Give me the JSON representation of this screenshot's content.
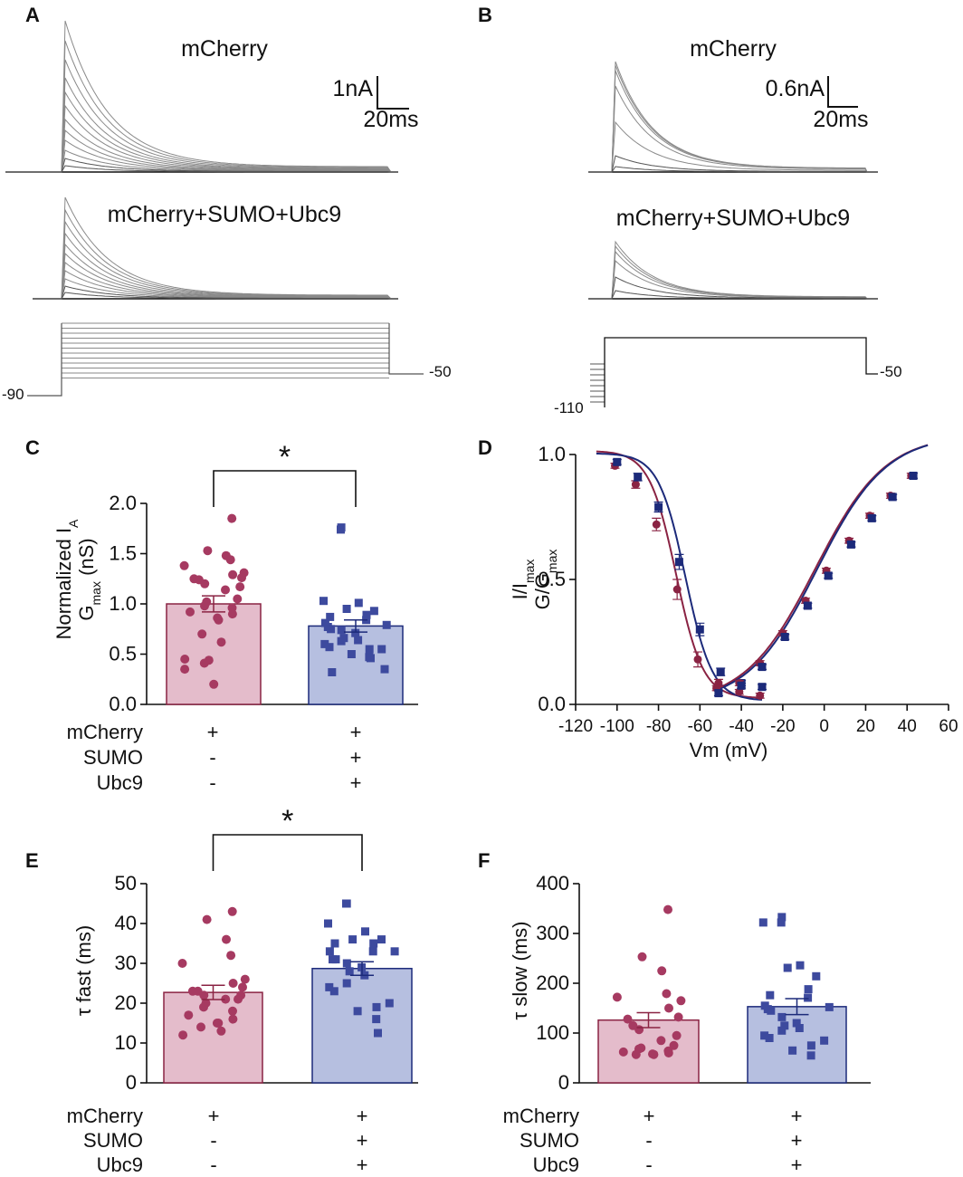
{
  "colors": {
    "control_fill": "#e4bccb",
    "control_edge": "#8a2343",
    "control_dot": "#a63a61",
    "sumo_fill": "#b6bfe0",
    "sumo_edge": "#1c2a7a",
    "sumo_dot": "#3d4a9e",
    "trace": "#7a7a7a"
  },
  "panel_letters": [
    "A",
    "B",
    "C",
    "D",
    "E",
    "F"
  ],
  "panel_A": {
    "top_title": "mCherry",
    "bottom_title": "mCherry+SUMO+Ubc9",
    "scale_current": "1nA",
    "scale_time": "20ms",
    "hold_label": "-90",
    "end_label": "-50"
  },
  "panel_B": {
    "top_title": "mCherry",
    "bottom_title": "mCherry+SUMO+Ubc9",
    "scale_current": "0.6nA",
    "scale_time": "20ms",
    "hold_label": "-110",
    "end_label": "-50"
  },
  "conditions_table": {
    "rows": [
      {
        "label": "mCherry",
        "control": "+",
        "sumo": "+"
      },
      {
        "label": "SUMO",
        "control": "-",
        "sumo": "+"
      },
      {
        "label": "Ubc9",
        "control": "-",
        "sumo": "+"
      }
    ]
  },
  "significance": "*",
  "chart_data": [
    {
      "id": "C",
      "type": "bar",
      "ylabel_line1": "Normalized I",
      "ylabel_sub1": "A",
      "ylabel_line2_pre": "G",
      "ylabel_sub2": "max",
      "ylabel_line2_post": " (nS)",
      "ylim": [
        0,
        2.0
      ],
      "yticks": [
        "0.0",
        "0.5",
        "1.0",
        "1.5",
        "2.0"
      ],
      "ytick_values": [
        0,
        0.5,
        1.0,
        1.5,
        2.0
      ],
      "bars": [
        {
          "name": "control",
          "mean": 1.0,
          "sem": 0.08
        },
        {
          "name": "sumo",
          "mean": 0.78,
          "sem": 0.06
        }
      ],
      "points": {
        "control": [
          1.85,
          1.53,
          1.48,
          1.44,
          1.38,
          1.31,
          1.29,
          1.26,
          1.25,
          1.24,
          1.2,
          1.17,
          1.14,
          1.05,
          1.02,
          0.98,
          0.96,
          0.92,
          0.9,
          0.86,
          0.84,
          0.7,
          0.62,
          0.45,
          0.44,
          0.41,
          0.35,
          0.2
        ],
        "sumo": [
          1.76,
          1.74,
          1.03,
          1.01,
          0.95,
          0.93,
          0.89,
          0.87,
          0.84,
          0.81,
          0.79,
          0.77,
          0.75,
          0.74,
          0.71,
          0.66,
          0.64,
          0.63,
          0.6,
          0.57,
          0.55,
          0.55,
          0.5,
          0.47,
          0.46,
          0.35,
          0.32
        ]
      }
    },
    {
      "id": "D",
      "type": "line",
      "xlabel": "Vm (mV)",
      "ylabel_l1_pre": "I/I",
      "ylabel_l1_sub": "max",
      "ylabel_l2_pre": "G/G",
      "ylabel_l2_sub": "max",
      "xlim": [
        -120,
        60
      ],
      "ylim": [
        0,
        1.0
      ],
      "xticks": [
        "-120",
        "-100",
        "-80",
        "-60",
        "-40",
        "-20",
        "0",
        "20",
        "40",
        "60"
      ],
      "xtick_values": [
        -120,
        -100,
        -80,
        -60,
        -40,
        -20,
        0,
        20,
        40,
        60
      ],
      "yticks": [
        "0.0",
        "0.5",
        "1.0"
      ],
      "ytick_values": [
        0,
        0.5,
        1.0
      ],
      "series": [
        {
          "name": "inactivation control",
          "marker": "circle",
          "x": [
            -101,
            -91,
            -81,
            -71,
            -61,
            -51,
            -41,
            -31
          ],
          "y": [
            0.955,
            0.88,
            0.72,
            0.46,
            0.18,
            0.085,
            0.05,
            0.035
          ],
          "err": [
            0.01,
            0.015,
            0.025,
            0.04,
            0.03,
            0.015,
            0.01,
            0.01
          ]
        },
        {
          "name": "inactivation sumo",
          "marker": "square",
          "x": [
            -100,
            -90,
            -80,
            -70,
            -60,
            -50,
            -40,
            -30
          ],
          "y": [
            0.97,
            0.91,
            0.79,
            0.57,
            0.3,
            0.13,
            0.085,
            0.07
          ],
          "err": [
            0.01,
            0.015,
            0.02,
            0.03,
            0.025,
            0.015,
            0.01,
            0.01
          ]
        },
        {
          "name": "activation control",
          "marker": "circle",
          "x": [
            -52,
            -41,
            -31,
            -20,
            -9,
            1,
            12,
            22,
            32,
            42
          ],
          "y": [
            0.065,
            0.085,
            0.165,
            0.285,
            0.415,
            0.535,
            0.655,
            0.755,
            0.835,
            0.915
          ],
          "err": [
            0.01,
            0.01,
            0.01,
            0.01,
            0.01,
            0.01,
            0.01,
            0.01,
            0.01,
            0.01
          ]
        },
        {
          "name": "activation sumo",
          "marker": "square",
          "x": [
            -51,
            -40,
            -30,
            -19,
            -8,
            2,
            13,
            23,
            33,
            43
          ],
          "y": [
            0.045,
            0.075,
            0.15,
            0.27,
            0.395,
            0.515,
            0.64,
            0.745,
            0.83,
            0.915
          ],
          "err": [
            0.01,
            0.01,
            0.01,
            0.01,
            0.01,
            0.01,
            0.01,
            0.01,
            0.01,
            0.01
          ]
        }
      ]
    },
    {
      "id": "E",
      "type": "bar",
      "ylabel": "τ fast (ms)",
      "ylim": [
        0,
        50
      ],
      "yticks": [
        "0",
        "10",
        "20",
        "30",
        "40",
        "50"
      ],
      "ytick_values": [
        0,
        10,
        20,
        30,
        40,
        50
      ],
      "bars": [
        {
          "name": "control",
          "mean": 22.7,
          "sem": 1.8
        },
        {
          "name": "sumo",
          "mean": 28.7,
          "sem": 1.7
        }
      ],
      "points": {
        "control": [
          43,
          41,
          36,
          32,
          30,
          26,
          25,
          24,
          23,
          23,
          22,
          22,
          21,
          21,
          20,
          19,
          18,
          17,
          16,
          15,
          15,
          14,
          13,
          12
        ],
        "sumo": [
          45,
          45,
          40,
          38,
          36,
          36,
          35,
          35,
          33,
          33,
          33,
          31,
          31,
          30,
          29,
          28,
          27,
          25,
          24,
          23,
          20,
          19,
          18,
          16,
          12.5
        ]
      }
    },
    {
      "id": "F",
      "type": "bar",
      "ylabel": "τ slow (ms)",
      "ylim": [
        0,
        400
      ],
      "yticks": [
        "0",
        "100",
        "200",
        "300",
        "400"
      ],
      "ytick_values": [
        0,
        100,
        200,
        300,
        400
      ],
      "bars": [
        {
          "name": "control",
          "mean": 126,
          "sem": 15
        },
        {
          "name": "sumo",
          "mean": 153,
          "sem": 16
        }
      ],
      "points": {
        "control": [
          348,
          253,
          225,
          179,
          172,
          165,
          150,
          132,
          128,
          115,
          107,
          95,
          85,
          75,
          70,
          68,
          64,
          62,
          60,
          58,
          57,
          57
        ],
        "sumo": [
          333,
          322,
          322,
          236,
          231,
          214,
          188,
          176,
          171,
          155,
          152,
          148,
          145,
          132,
          120,
          115,
          110,
          105,
          95,
          90,
          85,
          75,
          65,
          55
        ]
      }
    }
  ]
}
